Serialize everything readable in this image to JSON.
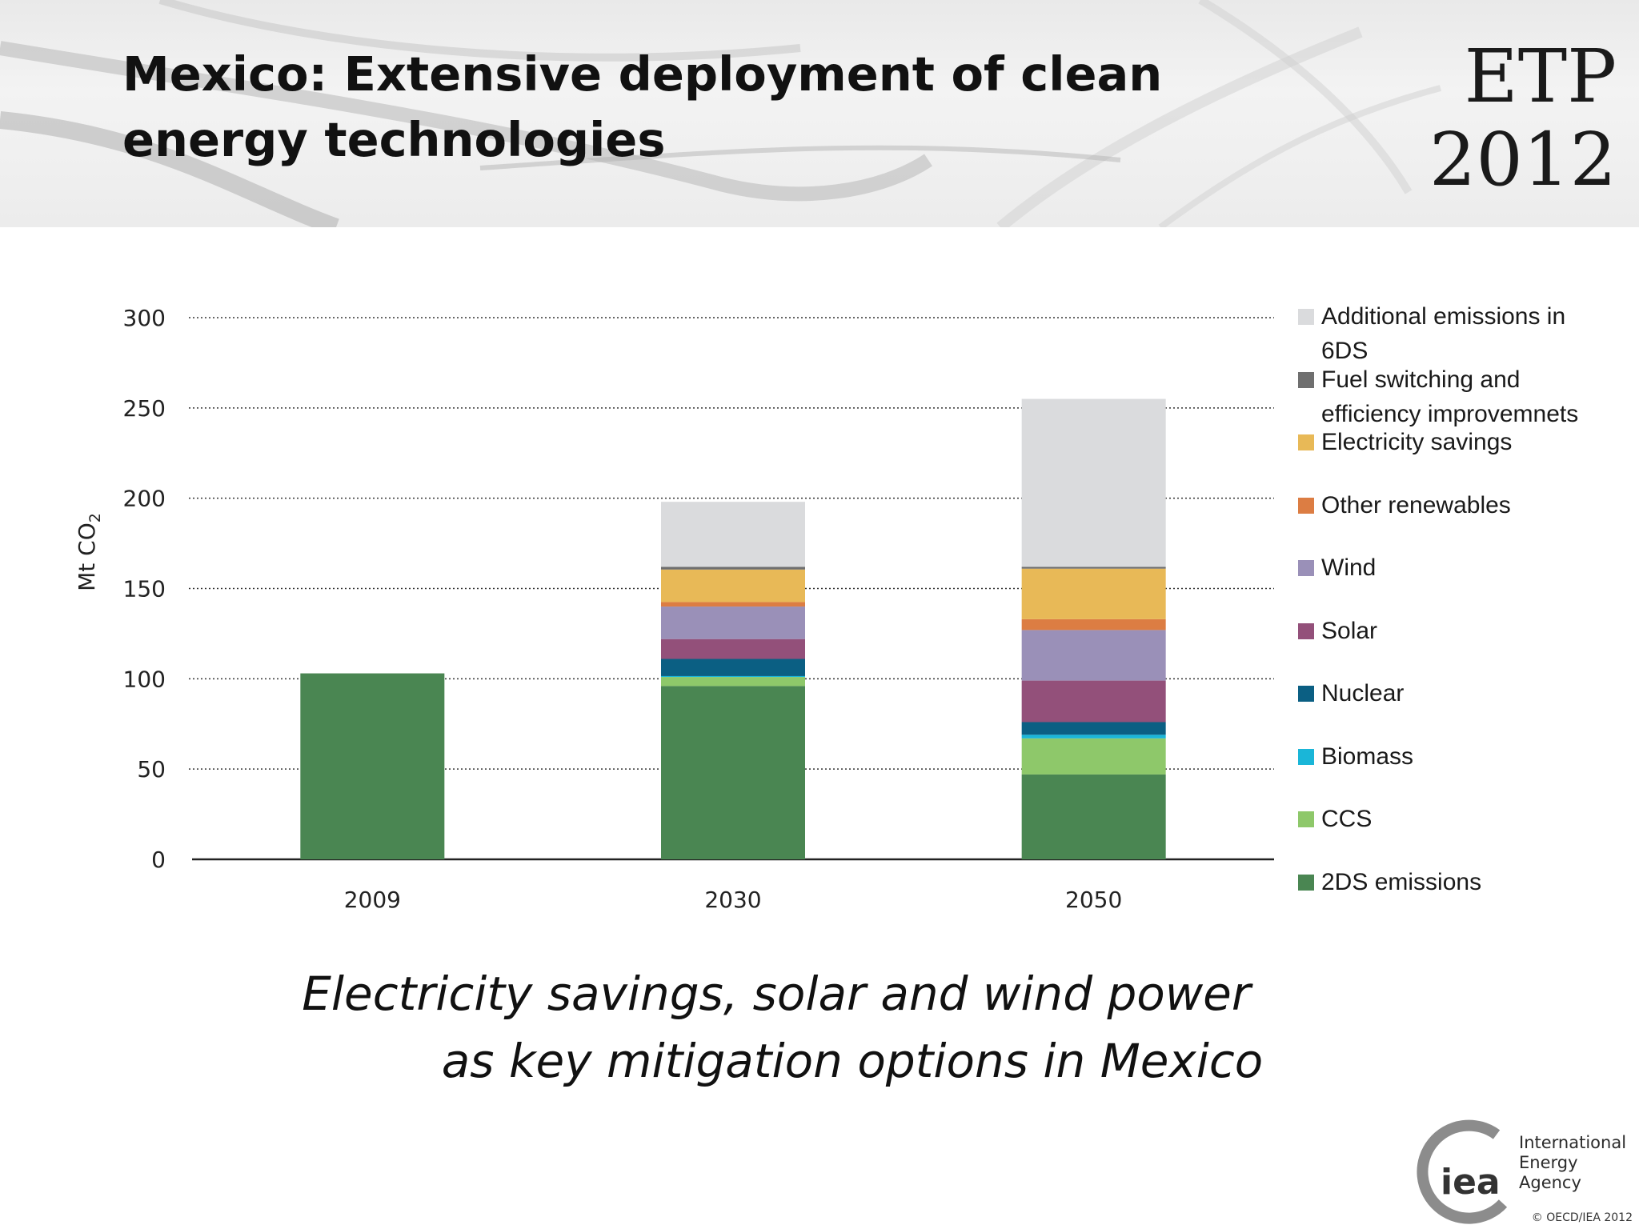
{
  "slide": {
    "title": "Mexico: Extensive deployment of clean energy technologies",
    "brand_line1": "ETP",
    "brand_line2": "2012",
    "caption_line1": "Electricity savings, solar and wind power",
    "caption_line2": "as key mitigation options in Mexico",
    "logo_text": "iea",
    "agency_line1": "International",
    "agency_line2": "Energy Agency",
    "copyright": "© OECD/IEA 2012"
  },
  "chart_data": {
    "type": "bar",
    "stacked": true,
    "ylabel": "Mt CO",
    "ylabel_subscript": "2",
    "ylim": [
      0,
      300
    ],
    "yticks": [
      0,
      50,
      100,
      150,
      200,
      250,
      300
    ],
    "grid": true,
    "legend_position": "right",
    "categories": [
      "2009",
      "2030",
      "2050"
    ],
    "series": [
      {
        "name": "2DS emissions",
        "color": "#4a8652",
        "values": [
          103,
          96,
          47
        ]
      },
      {
        "name": "CCS",
        "color": "#8ec86a",
        "values": [
          0,
          5,
          20
        ]
      },
      {
        "name": "Biomass",
        "color": "#1ab6d8",
        "values": [
          0,
          0.5,
          2
        ]
      },
      {
        "name": "Nuclear",
        "color": "#0b5f83",
        "values": [
          0,
          9.5,
          7
        ]
      },
      {
        "name": "Solar",
        "color": "#93507a",
        "values": [
          0,
          11,
          23
        ]
      },
      {
        "name": "Wind",
        "color": "#9a90b8",
        "values": [
          0,
          18,
          28
        ]
      },
      {
        "name": "Other renewables",
        "color": "#dc7d43",
        "values": [
          0,
          2.5,
          6
        ]
      },
      {
        "name": "Electricity savings",
        "color": "#e8b957",
        "values": [
          0,
          18,
          28
        ]
      },
      {
        "name": "Fuel switching and efficiency improvemnets",
        "color": "#6f6f6f",
        "values": [
          0,
          1.5,
          1
        ]
      },
      {
        "name": "Additional emissions in 6DS",
        "color": "#dadbdd",
        "values": [
          0,
          36,
          93
        ]
      }
    ]
  }
}
